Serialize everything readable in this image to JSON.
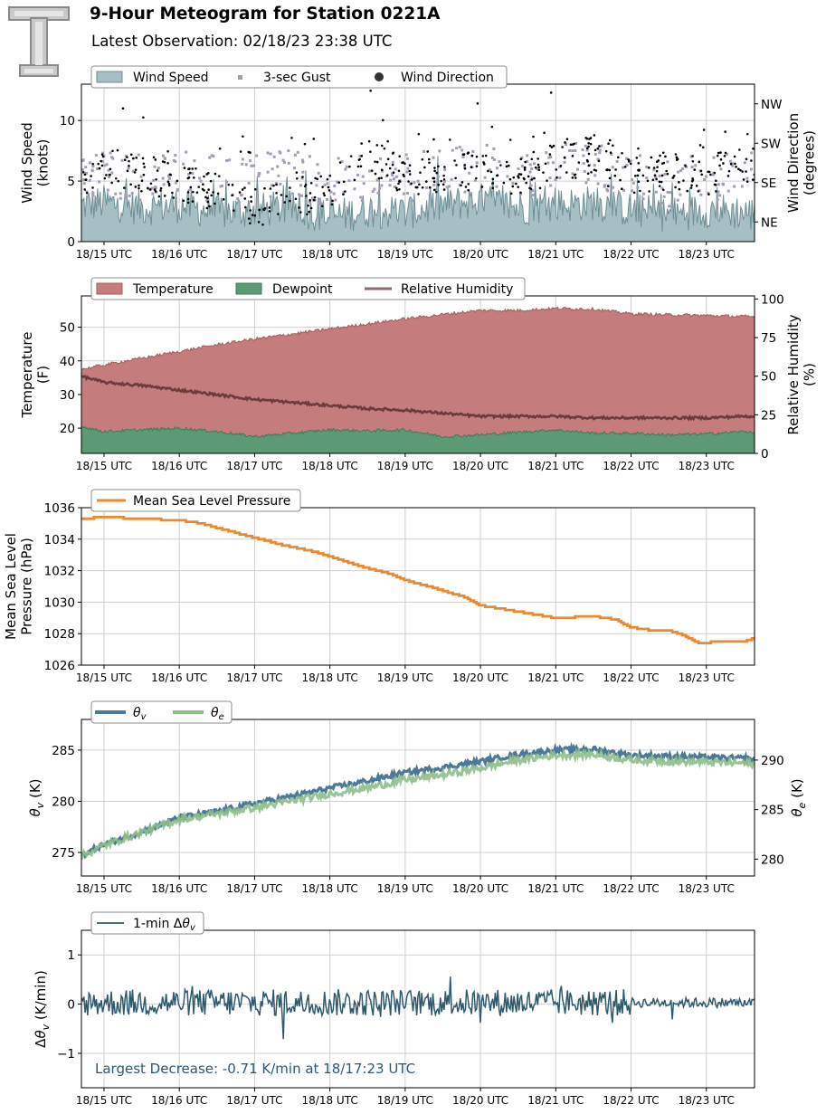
{
  "header": {
    "title": "9-Hour Meteogram for Station 0221A",
    "subtitle": "Latest Observation: 02/18/23 23:38 UTC",
    "logo_icon": "texas-tech-double-t-logo"
  },
  "time_ticks": [
    "18/15 UTC",
    "18/16 UTC",
    "18/17 UTC",
    "18/18 UTC",
    "18/19 UTC",
    "18/20 UTC",
    "18/21 UTC",
    "18/22 UTC",
    "18/23 UTC"
  ],
  "chart_data": [
    {
      "type": "area",
      "id": "wind",
      "xlim_hours": [
        14.7,
        23.64
      ],
      "ylabel": "Wind Speed\n(knots)",
      "ylabel2": "Wind Direction\n(degrees)",
      "ylim": [
        0,
        13
      ],
      "yticks": [
        0,
        5,
        10
      ],
      "y2ticks": [
        {
          "label": "NE",
          "value": 45
        },
        {
          "label": "SE",
          "value": 135
        },
        {
          "label": "SW",
          "value": 225
        },
        {
          "label": "NW",
          "value": 315
        }
      ],
      "y2lim": [
        0,
        360
      ],
      "legend": [
        "Wind Speed",
        "3-sec Gust",
        "Wind Direction"
      ],
      "colors": {
        "speed": "#a7bfc4",
        "speed_edge": "#6e8f95",
        "gust": "#a49db5",
        "direction": "#000000"
      },
      "series": [
        {
          "name": "Wind Speed",
          "hours": [
            14.7,
            15.0,
            15.5,
            16.0,
            16.5,
            17.0,
            17.5,
            18.0,
            18.5,
            19.0,
            19.5,
            20.0,
            20.5,
            21.0,
            21.5,
            22.0,
            22.5,
            23.0,
            23.5,
            23.64
          ],
          "values": [
            3.0,
            3.2,
            2.8,
            3.0,
            2.4,
            2.6,
            2.8,
            2.0,
            2.6,
            2.4,
            3.0,
            3.4,
            2.8,
            3.0,
            3.2,
            2.6,
            2.2,
            2.6,
            2.4,
            2.2
          ]
        },
        {
          "name": "3-sec Gust",
          "hours": [
            14.7,
            15.0,
            15.5,
            16.0,
            16.5,
            17.0,
            17.5,
            18.0,
            18.5,
            19.0,
            19.5,
            20.0,
            20.5,
            21.0,
            21.5,
            22.0,
            22.5,
            23.0,
            23.5,
            23.64
          ],
          "values": [
            5.0,
            5.6,
            5.2,
            5.8,
            5.0,
            5.4,
            5.6,
            4.8,
            5.4,
            5.2,
            5.8,
            6.2,
            5.6,
            6.0,
            6.4,
            5.4,
            4.8,
            5.2,
            5.6,
            5.4
          ]
        },
        {
          "name": "Wind Direction",
          "hours": [
            14.7,
            15.0,
            15.5,
            16.0,
            16.5,
            17.0,
            17.5,
            18.0,
            18.5,
            19.0,
            19.5,
            20.0,
            20.5,
            21.0,
            21.5,
            22.0,
            22.5,
            23.0,
            23.5,
            23.64
          ],
          "values": [
            140,
            175,
            160,
            130,
            110,
            80,
            95,
            120,
            190,
            150,
            140,
            170,
            150,
            180,
            200,
            150,
            160,
            150,
            180,
            185
          ]
        }
      ]
    },
    {
      "type": "area",
      "id": "temp",
      "xlim_hours": [
        14.7,
        23.64
      ],
      "ylabel": "Temperature\n(F)",
      "ylabel2": "Relative Humidity\n(%)",
      "ylim": [
        12.5,
        59.3
      ],
      "yticks": [
        20,
        30,
        40,
        50
      ],
      "y2lim": [
        0,
        102
      ],
      "y2ticks": [
        0,
        25,
        50,
        75,
        100
      ],
      "legend": [
        "Temperature",
        "Dewpoint",
        "Relative Humidity"
      ],
      "colors": {
        "temperature": "#c47c7d",
        "dewpoint": "#5c9a76",
        "rh": "#6e3b3d"
      },
      "series": [
        {
          "name": "Temperature",
          "hours": [
            14.7,
            15.0,
            15.5,
            16.0,
            16.5,
            17.0,
            17.5,
            18.0,
            18.5,
            19.0,
            19.5,
            20.0,
            20.5,
            21.0,
            21.5,
            22.0,
            22.5,
            23.0,
            23.5,
            23.64
          ],
          "values": [
            37.5,
            38.8,
            40.8,
            42.8,
            44.8,
            46.5,
            48.0,
            49.5,
            51.0,
            52.5,
            53.8,
            55.0,
            55.0,
            55.6,
            55.4,
            54.0,
            53.7,
            53.5,
            53.2,
            53.1
          ]
        },
        {
          "name": "Dewpoint",
          "hours": [
            14.7,
            15.0,
            15.5,
            16.0,
            16.5,
            17.0,
            17.5,
            18.0,
            18.5,
            19.0,
            19.5,
            20.0,
            20.5,
            21.0,
            21.5,
            22.0,
            22.5,
            23.0,
            23.5,
            23.64
          ],
          "values": [
            20.5,
            19.0,
            19.5,
            20.0,
            19.0,
            17.5,
            18.5,
            19.5,
            19.2,
            19.5,
            17.5,
            18.0,
            18.8,
            19.5,
            18.5,
            18.5,
            18.0,
            18.3,
            19.0,
            18.8
          ]
        },
        {
          "name": "Relative Humidity",
          "hours": [
            14.7,
            15.0,
            15.5,
            16.0,
            16.5,
            17.0,
            17.5,
            18.0,
            18.5,
            19.0,
            19.5,
            20.0,
            20.5,
            21.0,
            21.5,
            22.0,
            22.5,
            23.0,
            23.5,
            23.64
          ],
          "values": [
            50,
            46,
            44,
            41,
            38,
            35,
            33,
            31,
            29,
            28,
            26,
            24,
            24,
            24,
            23,
            23,
            23,
            23,
            24,
            24
          ]
        }
      ]
    },
    {
      "type": "line",
      "id": "pressure",
      "xlim_hours": [
        14.7,
        23.64
      ],
      "ylabel": "Mean Sea Level\nPressure (hPa)",
      "ylim": [
        1026,
        1036
      ],
      "yticks": [
        1026,
        1028,
        1030,
        1032,
        1034,
        1036
      ],
      "legend": [
        "Mean Sea Level Pressure"
      ],
      "colors": {
        "pressure": "#e88a32"
      },
      "series": [
        {
          "name": "Mean Sea Level Pressure",
          "hours": [
            14.7,
            15.0,
            15.5,
            16.0,
            16.3,
            16.6,
            17.0,
            17.4,
            17.8,
            18.0,
            18.4,
            18.8,
            19.0,
            19.4,
            19.8,
            20.0,
            20.5,
            21.0,
            21.5,
            21.8,
            22.0,
            22.3,
            22.5,
            22.7,
            22.9,
            23.2,
            23.5,
            23.64
          ],
          "values": [
            1035.3,
            1035.4,
            1035.3,
            1035.2,
            1035.0,
            1034.6,
            1034.1,
            1033.6,
            1033.2,
            1032.9,
            1032.3,
            1031.8,
            1031.4,
            1030.9,
            1030.3,
            1029.8,
            1029.4,
            1029.0,
            1029.1,
            1028.9,
            1028.4,
            1028.2,
            1028.2,
            1027.9,
            1027.4,
            1027.5,
            1027.5,
            1027.7
          ]
        }
      ]
    },
    {
      "type": "line",
      "id": "theta",
      "xlim_hours": [
        14.7,
        23.64
      ],
      "ylabel": "θ_v (K)",
      "ylabel2": "θ_e (K)",
      "ylim": [
        272.7,
        288.0
      ],
      "yticks": [
        275,
        280,
        285
      ],
      "y2lim": [
        278.3,
        294.1
      ],
      "y2ticks": [
        280,
        285,
        290
      ],
      "legend": [
        "θ_v",
        "θ_e"
      ],
      "colors": {
        "theta_v": "#4a7a98",
        "theta_e": "#8fbc8b"
      },
      "series": [
        {
          "name": "θ_v",
          "hours": [
            14.7,
            15.0,
            15.5,
            16.0,
            16.5,
            17.0,
            17.5,
            18.0,
            18.5,
            19.0,
            19.5,
            20.0,
            20.5,
            21.0,
            21.5,
            22.0,
            22.5,
            23.0,
            23.5,
            23.64
          ],
          "values": [
            274.7,
            275.8,
            277.0,
            278.4,
            279.0,
            279.8,
            280.5,
            281.3,
            282.0,
            282.8,
            283.3,
            283.9,
            284.6,
            285.0,
            285.1,
            284.5,
            284.4,
            284.3,
            284.2,
            284.1
          ]
        },
        {
          "name": "θ_e",
          "hours": [
            14.7,
            15.0,
            15.5,
            16.0,
            16.5,
            17.0,
            17.5,
            18.0,
            18.5,
            19.0,
            19.5,
            20.0,
            20.5,
            21.0,
            21.5,
            22.0,
            22.5,
            23.0,
            23.5,
            23.64
          ],
          "values": [
            280.3,
            281.4,
            282.7,
            284.0,
            284.6,
            285.2,
            285.9,
            286.6,
            287.2,
            288.0,
            288.5,
            289.2,
            290.0,
            290.5,
            290.6,
            290.0,
            289.9,
            289.8,
            289.7,
            289.6
          ]
        }
      ]
    },
    {
      "type": "line",
      "id": "dtheta",
      "xlim_hours": [
        14.7,
        23.64
      ],
      "ylabel": "Δθ_v (K/min)",
      "ylim": [
        -1.7,
        1.5
      ],
      "yticks": [
        -1,
        0,
        1
      ],
      "legend": [
        "1-min Δθ_v"
      ],
      "annotation": "Largest Decrease: -0.71 K/min at 18/17:23 UTC",
      "colors": {
        "dtheta": "#2f5a6e",
        "annotation": "#2a5a78"
      },
      "series": [
        {
          "name": "1-min Δθ_v",
          "hours": [
            14.7,
            15.0,
            15.5,
            16.0,
            16.5,
            17.0,
            17.38,
            17.5,
            18.0,
            18.5,
            19.0,
            19.5,
            20.0,
            20.5,
            21.0,
            21.5,
            22.0,
            22.5,
            23.0,
            23.5,
            23.64
          ],
          "values": [
            0.05,
            0.08,
            0.05,
            0.06,
            0.04,
            0.05,
            -0.71,
            0.06,
            0.05,
            0.05,
            0.04,
            0.05,
            0.06,
            0.05,
            0.04,
            0.04,
            0.03,
            0.02,
            0.02,
            0.02,
            0.02
          ]
        }
      ]
    }
  ]
}
